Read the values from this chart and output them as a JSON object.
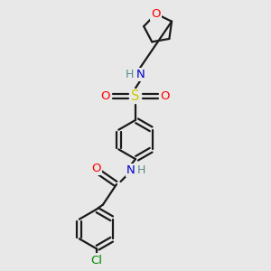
{
  "bg_color": "#e8e8e8",
  "bond_color": "#1a1a1a",
  "N_color": "#0000cc",
  "O_color": "#ff0000",
  "S_color": "#cccc00",
  "Cl_color": "#008800",
  "H_color": "#5a8a8a",
  "line_width": 1.6,
  "font_size": 9.5,
  "figsize": [
    3.0,
    3.0
  ],
  "dpi": 100,
  "xlim": [
    0,
    10
  ],
  "ylim": [
    0,
    10
  ]
}
